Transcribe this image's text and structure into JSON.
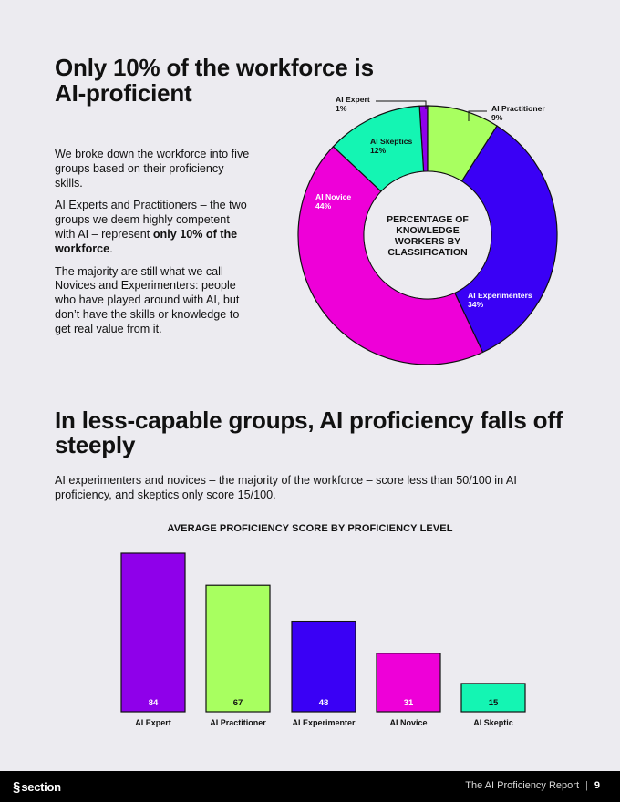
{
  "section1": {
    "title": "Only 10% of the workforce is AI-proficient",
    "para1": "We broke down the workforce into five groups based on their proficiency skills.",
    "para2_a": "AI Experts and Practitioners – the two groups we deem highly competent with AI – represent ",
    "para2_bold": "only 10% of the workforce",
    "para2_c": ".",
    "para3": "The majority are still what we call Novices and Experimenters: people who have played around with AI, but don’t have the skills or knowledge to get real value from it."
  },
  "section2": {
    "title": "In less-capable groups, AI proficiency falls off steeply",
    "subtitle": "AI experimenters and novices – the majority of the workforce – score less than 50/100 in AI proficiency, and skeptics only score 15/100."
  },
  "chart_data": [
    {
      "type": "pie",
      "title": "PERCENTAGE OF KNOWLEDGE WORKERS BY CLASSIFICATION",
      "title_lines": [
        "PERCENTAGE OF",
        "KNOWLEDGE",
        "WORKERS BY",
        "CLASSIFICATION"
      ],
      "donut": true,
      "slices": [
        {
          "label": "AI Expert",
          "pct_label": "1%",
          "value": 1,
          "color": "#8f00ea"
        },
        {
          "label": "AI Practitioner",
          "pct_label": "9%",
          "value": 9,
          "color": "#a8ff60"
        },
        {
          "label": "AI Experimenters",
          "pct_label": "34%",
          "value": 34,
          "color": "#3a00f5"
        },
        {
          "label": "AI Novice",
          "pct_label": "44%",
          "value": 44,
          "color": "#ee00d8"
        },
        {
          "label": "AI Skeptics",
          "pct_label": "12%",
          "value": 12,
          "color": "#14f5b3"
        }
      ]
    },
    {
      "type": "bar",
      "title": "AVERAGE PROFICIENCY SCORE BY PROFICIENCY LEVEL",
      "categories": [
        "AI Expert",
        "AI Practitioner",
        "AI Experimenter",
        "AI Novice",
        "AI Skeptic"
      ],
      "values": [
        84,
        67,
        48,
        31,
        15
      ],
      "colors": [
        "#8f00ea",
        "#a8ff60",
        "#3a00f5",
        "#ee00d8",
        "#14f5b3"
      ],
      "label_colors": [
        "#ffffff",
        "#111111",
        "#ffffff",
        "#ffffff",
        "#111111"
      ],
      "ylim": [
        0,
        84
      ]
    }
  ],
  "footer": {
    "brand": "section",
    "report": "The AI Proficiency Report",
    "separator": "|",
    "page": "9"
  }
}
